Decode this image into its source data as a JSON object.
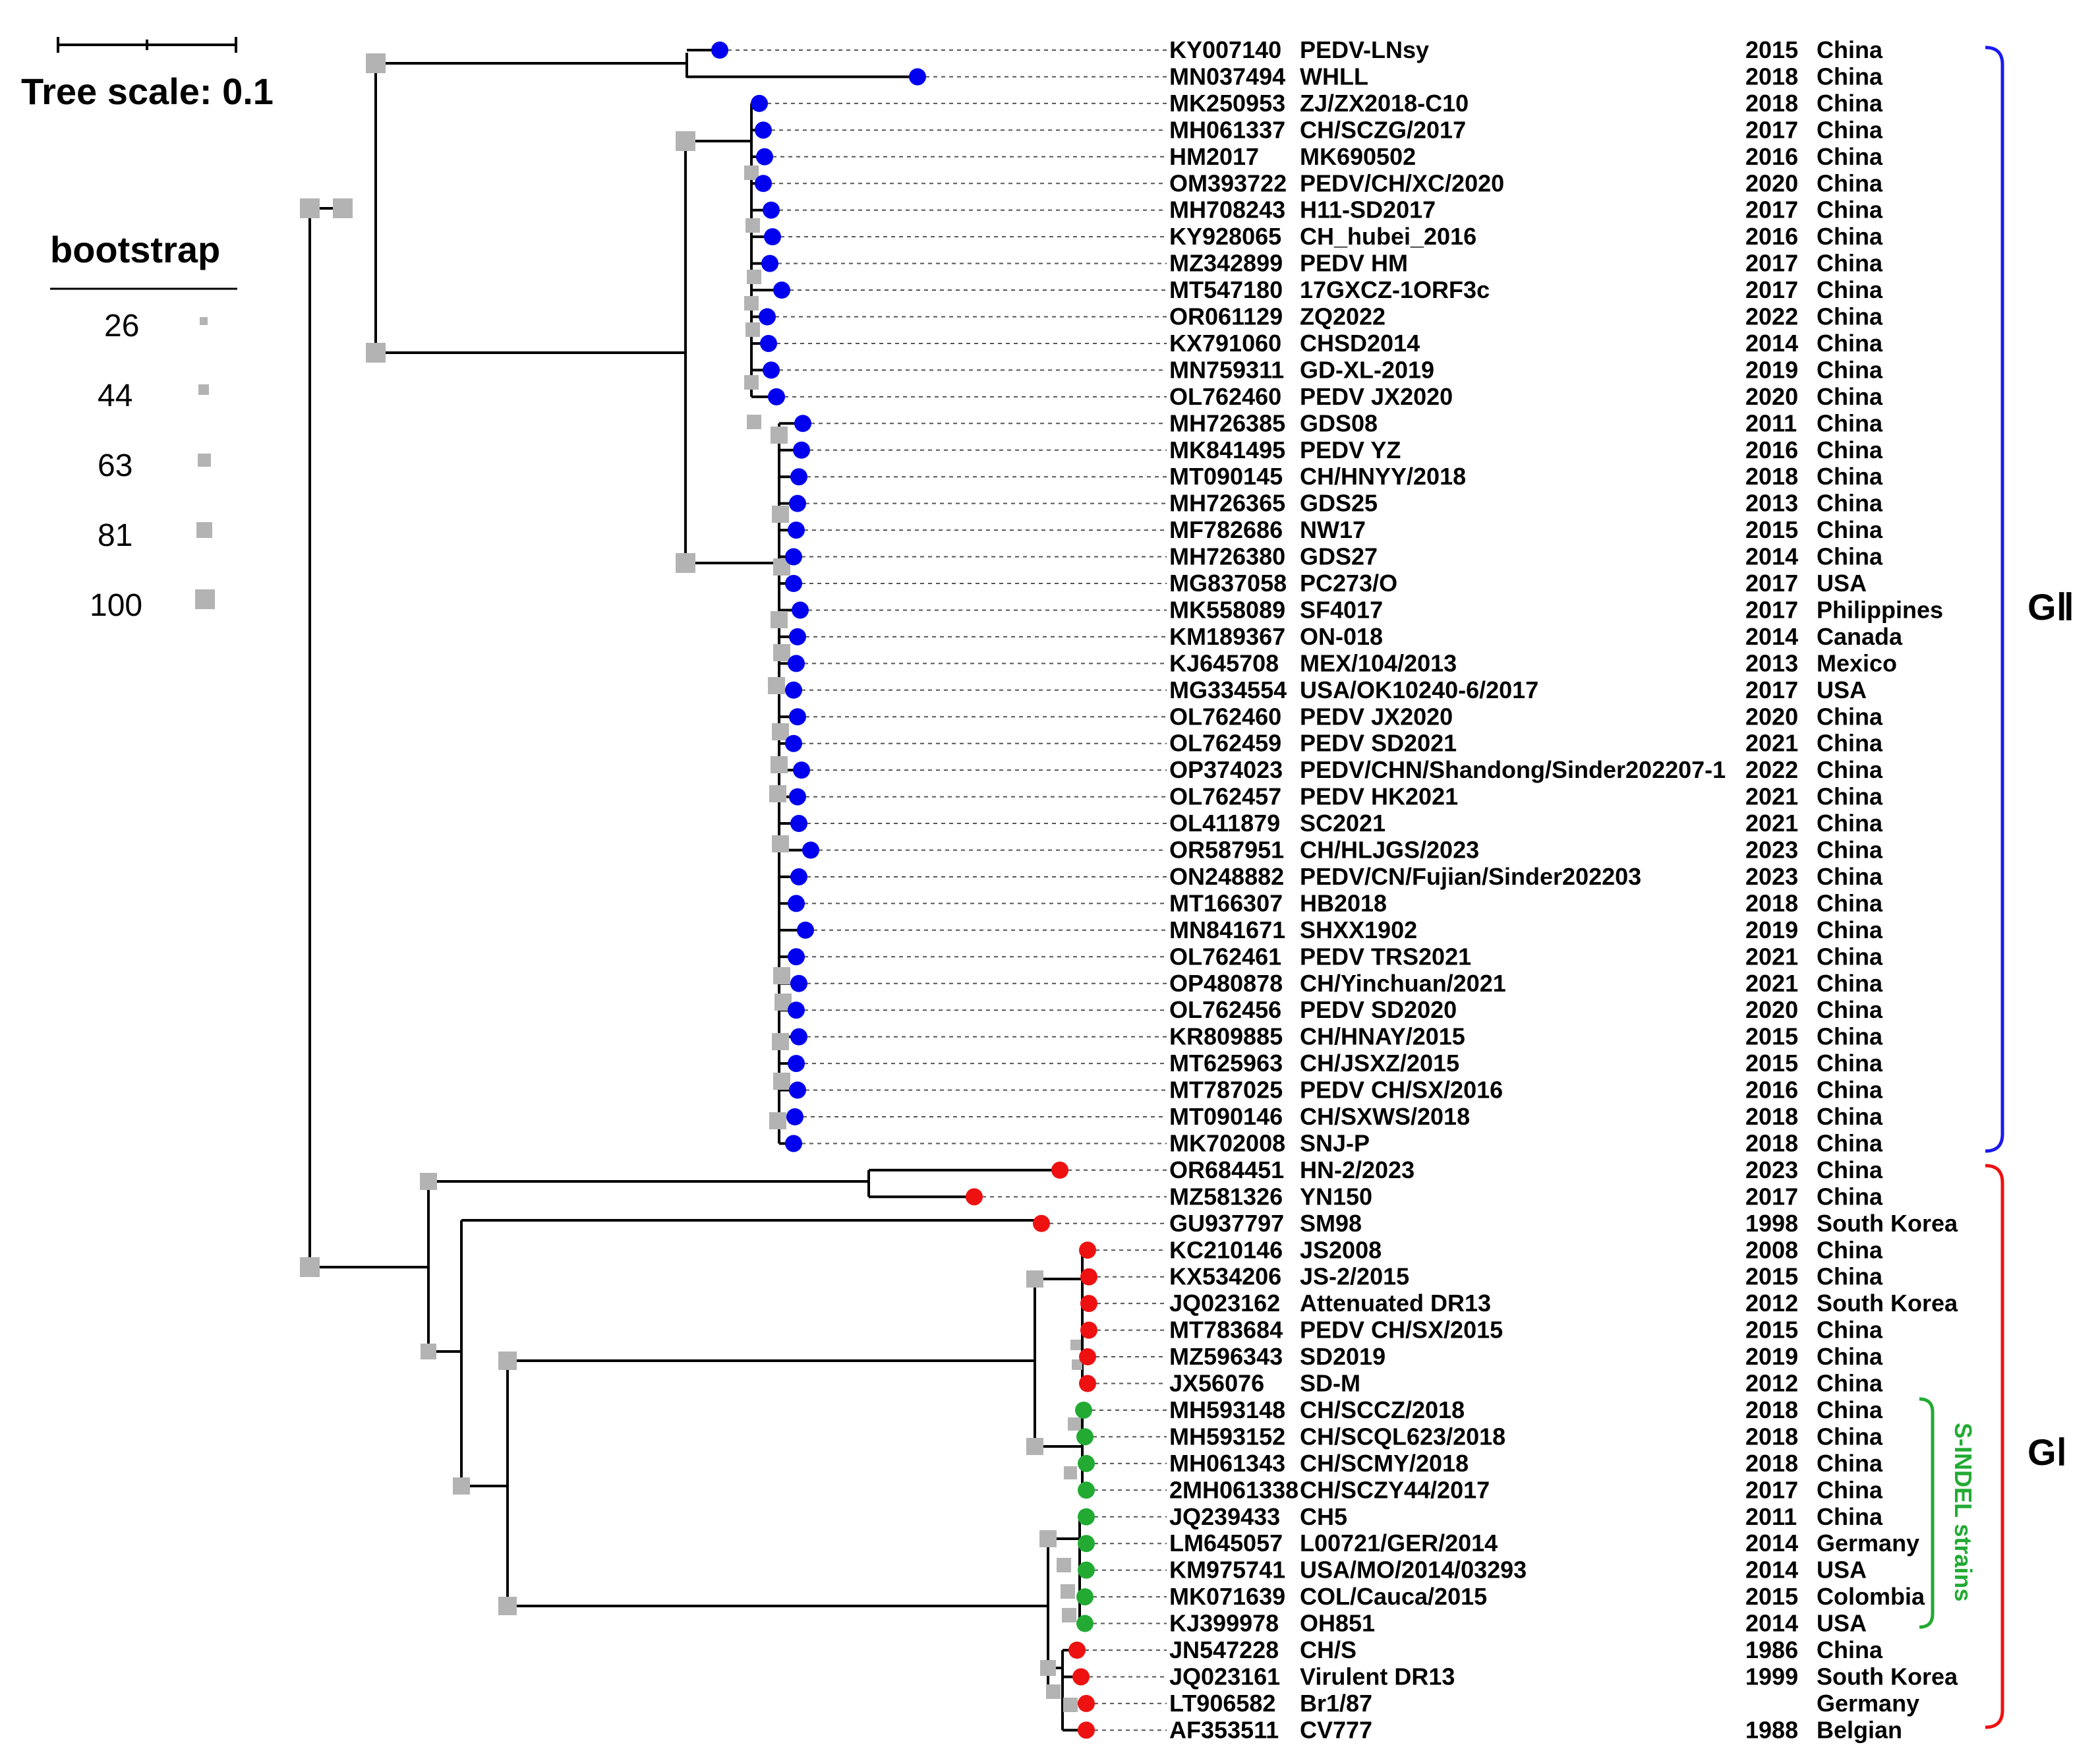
{
  "scale": {
    "title": "Tree scale: 0.1"
  },
  "legend": {
    "title": "bootstrap",
    "values": [
      "26",
      "44",
      "63",
      "81",
      "100"
    ]
  },
  "colors": {
    "gii": "#0000ee",
    "gi": "#ee1111",
    "indel": "#22aa33",
    "node": "#b3b3b3"
  },
  "clades": {
    "gii_label": "GⅡ",
    "gi_label": "GⅠ",
    "indel_label": "S-INDEL strains"
  },
  "taxa": [
    {
      "acc": "KY007140",
      "name": "PEDV-LNsy",
      "year": "2015",
      "country": "China",
      "color": "blue"
    },
    {
      "acc": "MN037494",
      "name": "WHLL",
      "year": "2018",
      "country": "China",
      "color": "blue"
    },
    {
      "acc": "MK250953",
      "name": "ZJ/ZX2018-C10",
      "year": "2018",
      "country": "China",
      "color": "blue"
    },
    {
      "acc": "MH061337",
      "name": "CH/SCZG/2017",
      "year": "2017",
      "country": "China",
      "color": "blue"
    },
    {
      "acc": "HM2017",
      "name": "MK690502",
      "year": "2016",
      "country": "China",
      "color": "blue"
    },
    {
      "acc": "OM393722",
      "name": "PEDV/CH/XC/2020",
      "year": "2020",
      "country": "China",
      "color": "blue"
    },
    {
      "acc": "MH708243",
      "name": "H11-SD2017",
      "year": "2017",
      "country": "China",
      "color": "blue"
    },
    {
      "acc": "KY928065",
      "name": "CH_hubei_2016",
      "year": "2016",
      "country": "China",
      "color": "blue"
    },
    {
      "acc": "MZ342899",
      "name": "PEDV HM",
      "year": "2017",
      "country": "China",
      "color": "blue"
    },
    {
      "acc": "MT547180",
      "name": "17GXCZ-1ORF3c",
      "year": "2017",
      "country": "China",
      "color": "blue"
    },
    {
      "acc": "OR061129",
      "name": "ZQ2022",
      "year": "2022",
      "country": "China",
      "color": "blue"
    },
    {
      "acc": "KX791060",
      "name": "CHSD2014",
      "year": "2014",
      "country": "China",
      "color": "blue"
    },
    {
      "acc": "MN759311",
      "name": "GD-XL-2019",
      "year": "2019",
      "country": "China",
      "color": "blue"
    },
    {
      "acc": "OL762460",
      "name": "PEDV JX2020",
      "year": "2020",
      "country": "China",
      "color": "blue"
    },
    {
      "acc": "MH726385",
      "name": "GDS08",
      "year": "2011",
      "country": "China",
      "color": "blue"
    },
    {
      "acc": "MK841495",
      "name": "PEDV YZ",
      "year": "2016",
      "country": "China",
      "color": "blue"
    },
    {
      "acc": "MT090145",
      "name": "CH/HNYY/2018",
      "year": "2018",
      "country": "China",
      "color": "blue"
    },
    {
      "acc": "MH726365",
      "name": "GDS25",
      "year": "2013",
      "country": "China",
      "color": "blue"
    },
    {
      "acc": "MF782686",
      "name": "NW17",
      "year": "2015",
      "country": "China",
      "color": "blue"
    },
    {
      "acc": "MH726380",
      "name": "GDS27",
      "year": "2014",
      "country": "China",
      "color": "blue"
    },
    {
      "acc": "MG837058",
      "name": "PC273/O",
      "year": "2017",
      "country": "USA",
      "color": "blue"
    },
    {
      "acc": "MK558089",
      "name": "SF4017",
      "year": "2017",
      "country": "Philippines",
      "color": "blue"
    },
    {
      "acc": "KM189367",
      "name": "ON-018",
      "year": "2014",
      "country": "Canada",
      "color": "blue"
    },
    {
      "acc": "KJ645708",
      "name": "MEX/104/2013",
      "year": "2013",
      "country": "Mexico",
      "color": "blue"
    },
    {
      "acc": "MG334554",
      "name": "USA/OK10240-6/2017",
      "year": "2017",
      "country": "USA",
      "color": "blue"
    },
    {
      "acc": "OL762460",
      "name": "PEDV JX2020",
      "year": "2020",
      "country": "China",
      "color": "blue"
    },
    {
      "acc": "OL762459",
      "name": "PEDV SD2021",
      "year": "2021",
      "country": "China",
      "color": "blue"
    },
    {
      "acc": "OP374023",
      "name": "PEDV/CHN/Shandong/Sinder202207-1",
      "year": "2022",
      "country": "China",
      "color": "blue"
    },
    {
      "acc": "OL762457",
      "name": "PEDV HK2021",
      "year": "2021",
      "country": "China",
      "color": "blue"
    },
    {
      "acc": "OL411879",
      "name": "SC2021",
      "year": "2021",
      "country": "China",
      "color": "blue"
    },
    {
      "acc": "OR587951",
      "name": "CH/HLJGS/2023",
      "year": "2023",
      "country": "China",
      "color": "blue"
    },
    {
      "acc": "ON248882",
      "name": "PEDV/CN/Fujian/Sinder202203",
      "year": "2023",
      "country": "China",
      "color": "blue"
    },
    {
      "acc": "MT166307",
      "name": "HB2018",
      "year": "2018",
      "country": "China",
      "color": "blue"
    },
    {
      "acc": "MN841671",
      "name": "SHXX1902",
      "year": "2019",
      "country": "China",
      "color": "blue"
    },
    {
      "acc": "OL762461",
      "name": "PEDV TRS2021",
      "year": "2021",
      "country": "China",
      "color": "blue"
    },
    {
      "acc": "OP480878",
      "name": "CH/Yinchuan/2021",
      "year": "2021",
      "country": "China",
      "color": "blue"
    },
    {
      "acc": "OL762456",
      "name": "PEDV SD2020",
      "year": "2020",
      "country": "China",
      "color": "blue"
    },
    {
      "acc": "KR809885",
      "name": "CH/HNAY/2015",
      "year": "2015",
      "country": "China",
      "color": "blue"
    },
    {
      "acc": "MT625963",
      "name": "CH/JSXZ/2015",
      "year": "2015",
      "country": "China",
      "color": "blue"
    },
    {
      "acc": "MT787025",
      "name": "PEDV CH/SX/2016",
      "year": "2016",
      "country": "China",
      "color": "blue"
    },
    {
      "acc": "MT090146",
      "name": "CH/SXWS/2018",
      "year": "2018",
      "country": "China",
      "color": "blue"
    },
    {
      "acc": "MK702008",
      "name": "SNJ-P",
      "year": "2018",
      "country": "China",
      "color": "blue"
    },
    {
      "acc": "OR684451",
      "name": "HN-2/2023",
      "year": "2023",
      "country": "China",
      "color": "red"
    },
    {
      "acc": "MZ581326",
      "name": "YN150",
      "year": "2017",
      "country": "China",
      "color": "red"
    },
    {
      "acc": "GU937797",
      "name": "SM98",
      "year": "1998",
      "country": "South Korea",
      "color": "red"
    },
    {
      "acc": "KC210146",
      "name": "JS2008",
      "year": "2008",
      "country": "China",
      "color": "red"
    },
    {
      "acc": "KX534206",
      "name": "JS-2/2015",
      "year": "2015",
      "country": "China",
      "color": "red"
    },
    {
      "acc": "JQ023162",
      "name": "Attenuated DR13",
      "year": "2012",
      "country": "South Korea",
      "color": "red"
    },
    {
      "acc": "MT783684",
      "name": "PEDV CH/SX/2015",
      "year": "2015",
      "country": "China",
      "color": "red"
    },
    {
      "acc": "MZ596343",
      "name": "SD2019",
      "year": "2019",
      "country": "China",
      "color": "red"
    },
    {
      "acc": "JX56076",
      "name": "SD-M",
      "year": "2012",
      "country": "China",
      "color": "red"
    },
    {
      "acc": "MH593148",
      "name": "CH/SCCZ/2018",
      "year": "2018",
      "country": "China",
      "color": "green"
    },
    {
      "acc": "MH593152",
      "name": "CH/SCQL623/2018",
      "year": "2018",
      "country": "China",
      "color": "green"
    },
    {
      "acc": "MH061343",
      "name": "CH/SCMY/2018",
      "year": "2018",
      "country": "China",
      "color": "green"
    },
    {
      "acc": "2MH061338",
      "name": "CH/SCZY44/2017",
      "year": "2017",
      "country": "China",
      "color": "green"
    },
    {
      "acc": "JQ239433",
      "name": "CH5",
      "year": "2011",
      "country": "China",
      "color": "green"
    },
    {
      "acc": "LM645057",
      "name": "L00721/GER/2014",
      "year": "2014",
      "country": "Germany",
      "color": "green"
    },
    {
      "acc": "KM975741",
      "name": "USA/MO/2014/03293",
      "year": "2014",
      "country": "USA",
      "color": "green"
    },
    {
      "acc": "MK071639",
      "name": "COL/Cauca/2015",
      "year": "2015",
      "country": "Colombia",
      "color": "green"
    },
    {
      "acc": "KJ399978",
      "name": "OH851",
      "year": "2014",
      "country": "USA",
      "color": "green"
    },
    {
      "acc": "JN547228",
      "name": "CH/S",
      "year": "1986",
      "country": "China",
      "color": "red"
    },
    {
      "acc": "JQ023161",
      "name": "Virulent DR13",
      "year": "1999",
      "country": "South Korea",
      "color": "red"
    },
    {
      "acc": "LT906582",
      "name": "Br1/87",
      "year": "",
      "country": "Germany",
      "color": "red"
    },
    {
      "acc": "AF353511",
      "name": "CV777",
      "year": "1988",
      "country": "Belgian",
      "color": "red"
    }
  ]
}
